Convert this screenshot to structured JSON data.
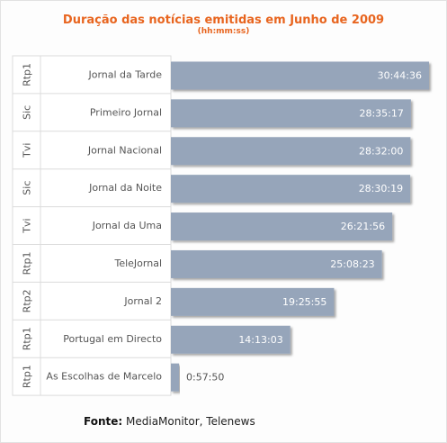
{
  "chart_data": {
    "type": "bar",
    "orientation": "horizontal",
    "title": "Duração das notícias emitidas em Junho de 2009",
    "subtitle": "(hh:mm:ss)",
    "channels": [
      "Rtp1",
      "Sic",
      "Tvi",
      "Sic",
      "Tvi",
      "Rtp1",
      "Rtp2",
      "Rtp1",
      "Rtp1"
    ],
    "categories": [
      "Jornal da Tarde",
      "Primeiro Jornal",
      "Jornal Nacional",
      "Jornal da Noite",
      "Jornal da Uma",
      "TeleJornal",
      "Jornal 2",
      "Portugal em Directo",
      "As Escolhas de Marcelo"
    ],
    "labels": [
      "30:44:36",
      "28:35:17",
      "28:32:00",
      "28:30:19",
      "26:21:56",
      "25:08:23",
      "19:25:55",
      "14:13:03",
      "0:57:50"
    ],
    "values_seconds": [
      110676,
      102917,
      102720,
      102619,
      94916,
      90503,
      69955,
      51183,
      3470
    ],
    "bar_color": "#96a5ba",
    "label_color_inside": "#ffffff",
    "label_color_outside": "#555555"
  },
  "footer": {
    "source_label": "Fonte:",
    "source_text": "MediaMonitor, Telenews"
  }
}
